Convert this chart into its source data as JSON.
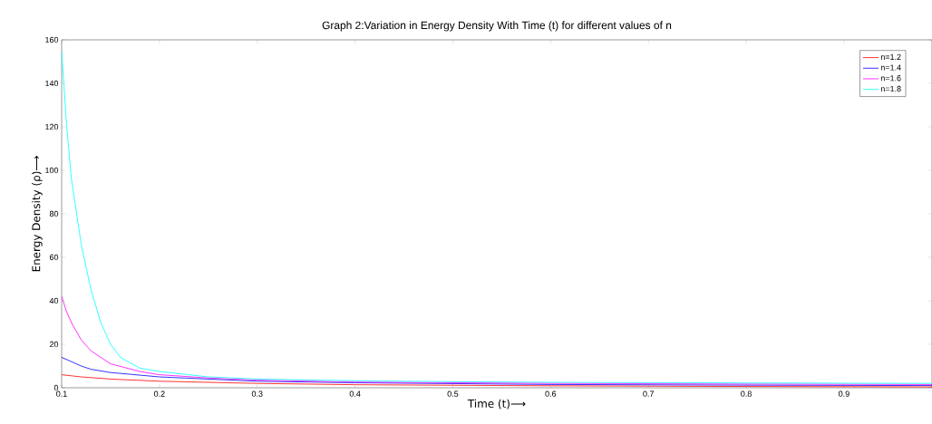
{
  "chart_data": {
    "type": "line",
    "title": "Graph 2:Variation in Energy Density With Time (t) for different values of n",
    "xlabel": "Time (t)⟶",
    "ylabel": "Energy Density (ρ)⟶",
    "xlim": [
      0.1,
      0.99
    ],
    "ylim": [
      0,
      160
    ],
    "xticks": [
      0.1,
      0.2,
      0.3,
      0.4,
      0.5,
      0.6,
      0.7,
      0.8,
      0.9
    ],
    "yticks": [
      0,
      20,
      40,
      60,
      80,
      100,
      120,
      140,
      160
    ],
    "grid": false,
    "legend": "top right",
    "marker": "none",
    "line_style": "solid",
    "series": [
      {
        "name": "n=1.2",
        "color": "#ff0000",
        "x": [
          0.1,
          0.12,
          0.15,
          0.2,
          0.3,
          0.4,
          0.6,
          0.8,
          0.99
        ],
        "values": [
          6,
          5,
          4,
          3,
          2,
          1.4,
          0.9,
          0.6,
          0.4
        ]
      },
      {
        "name": "n=1.4",
        "color": "#0000ff",
        "x": [
          0.1,
          0.11,
          0.12,
          0.13,
          0.15,
          0.2,
          0.3,
          0.4,
          0.6,
          0.8,
          0.99
        ],
        "values": [
          14,
          12,
          10,
          8.5,
          7,
          5,
          3,
          2.3,
          1.5,
          1.2,
          1
        ]
      },
      {
        "name": "n=1.6",
        "color": "#ff00ff",
        "x": [
          0.1,
          0.105,
          0.11,
          0.12,
          0.13,
          0.15,
          0.18,
          0.2,
          0.25,
          0.3,
          0.4,
          0.6,
          0.8,
          0.99
        ],
        "values": [
          42,
          35,
          30,
          22,
          17,
          11,
          7.5,
          6,
          4.5,
          3.5,
          2.6,
          2,
          1.7,
          1.5
        ]
      },
      {
        "name": "n=1.8",
        "color": "#00ffff",
        "x": [
          0.1,
          0.105,
          0.11,
          0.12,
          0.13,
          0.14,
          0.15,
          0.16,
          0.18,
          0.2,
          0.25,
          0.3,
          0.4,
          0.5,
          0.6,
          0.8,
          0.99
        ],
        "values": [
          155,
          121,
          96,
          66,
          45,
          30,
          20,
          14,
          9,
          7.5,
          5,
          4,
          3.2,
          2.8,
          2.5,
          2.2,
          2
        ]
      }
    ]
  }
}
